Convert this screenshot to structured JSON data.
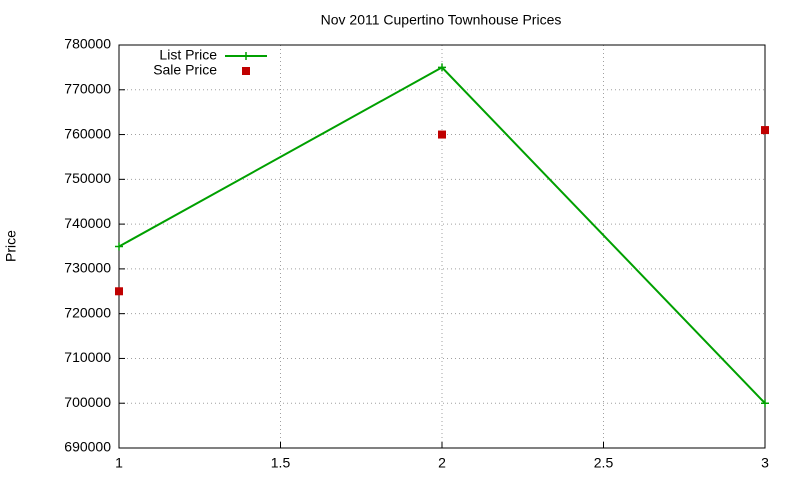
{
  "chart_data": {
    "type": "line",
    "title": "Nov 2011 Cupertino Townhouse Prices",
    "y_label": "Price",
    "x": [
      1,
      2,
      3
    ],
    "series": [
      {
        "name": "List Price",
        "color": "#00a000",
        "style": "linespoints",
        "values": [
          735000,
          775000,
          700000
        ]
      },
      {
        "name": "Sale Price",
        "color": "#c00000",
        "style": "points",
        "values": [
          725000,
          760000,
          761000
        ]
      }
    ],
    "xlim": [
      1,
      3
    ],
    "xticks": [
      1,
      1.5,
      2,
      2.5,
      3
    ],
    "ylim": [
      690000,
      780000
    ],
    "yticks": [
      690000,
      700000,
      710000,
      720000,
      730000,
      740000,
      750000,
      760000,
      770000,
      780000
    ],
    "grid": true,
    "legend": "top-left"
  }
}
